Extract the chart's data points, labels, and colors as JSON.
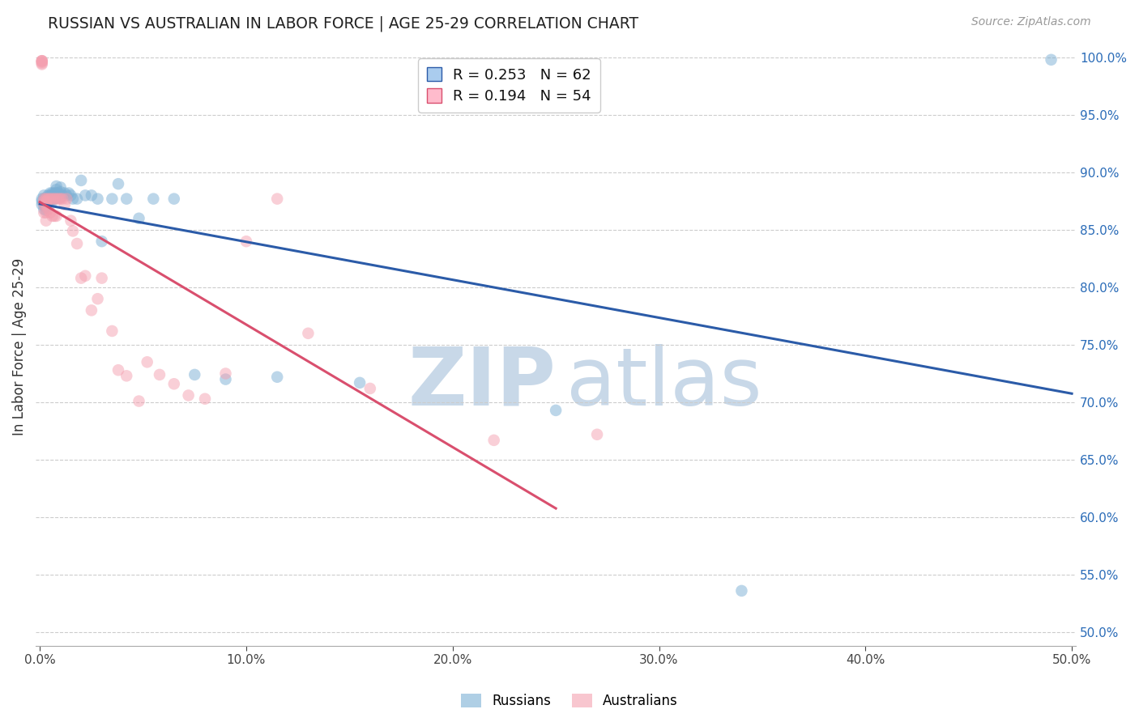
{
  "title": "RUSSIAN VS AUSTRALIAN IN LABOR FORCE | AGE 25-29 CORRELATION CHART",
  "source_text": "Source: ZipAtlas.com",
  "ylabel": "In Labor Force | Age 25-29",
  "xlim": [
    -0.002,
    0.502
  ],
  "ylim": [
    0.488,
    1.008
  ],
  "xtick_labels": [
    "0.0%",
    "10.0%",
    "20.0%",
    "30.0%",
    "40.0%",
    "50.0%"
  ],
  "xtick_vals": [
    0.0,
    0.1,
    0.2,
    0.3,
    0.4,
    0.5
  ],
  "ytick_labels": [
    "50.0%",
    "55.0%",
    "60.0%",
    "65.0%",
    "70.0%",
    "75.0%",
    "80.0%",
    "85.0%",
    "90.0%",
    "95.0%",
    "100.0%"
  ],
  "ytick_vals": [
    0.5,
    0.55,
    0.6,
    0.65,
    0.7,
    0.75,
    0.8,
    0.85,
    0.9,
    0.95,
    1.0
  ],
  "R_russian": 0.253,
  "N_russian": 62,
  "R_australian": 0.194,
  "N_australian": 54,
  "russian_color": "#7BAFD4",
  "australian_color": "#F4A0B0",
  "russian_line_color": "#2B5BA8",
  "australian_line_color": "#D94F6E",
  "watermark_zip": "ZIP",
  "watermark_atlas": "atlas",
  "watermark_color": "#C8D8E8",
  "russian_x": [
    0.001,
    0.001,
    0.001,
    0.002,
    0.002,
    0.002,
    0.002,
    0.002,
    0.003,
    0.003,
    0.003,
    0.003,
    0.003,
    0.003,
    0.004,
    0.004,
    0.004,
    0.005,
    0.005,
    0.005,
    0.005,
    0.006,
    0.006,
    0.006,
    0.006,
    0.007,
    0.007,
    0.007,
    0.008,
    0.008,
    0.008,
    0.008,
    0.009,
    0.009,
    0.01,
    0.01,
    0.01,
    0.011,
    0.012,
    0.013,
    0.014,
    0.015,
    0.016,
    0.018,
    0.02,
    0.022,
    0.025,
    0.028,
    0.03,
    0.035,
    0.038,
    0.042,
    0.048,
    0.055,
    0.065,
    0.075,
    0.09,
    0.115,
    0.155,
    0.25,
    0.34,
    0.49
  ],
  "russian_y": [
    0.877,
    0.875,
    0.872,
    0.88,
    0.877,
    0.875,
    0.872,
    0.868,
    0.877,
    0.878,
    0.875,
    0.872,
    0.87,
    0.867,
    0.88,
    0.877,
    0.875,
    0.882,
    0.88,
    0.877,
    0.875,
    0.882,
    0.88,
    0.877,
    0.875,
    0.882,
    0.88,
    0.877,
    0.888,
    0.885,
    0.882,
    0.878,
    0.882,
    0.878,
    0.887,
    0.883,
    0.878,
    0.88,
    0.882,
    0.88,
    0.882,
    0.88,
    0.877,
    0.877,
    0.893,
    0.88,
    0.88,
    0.877,
    0.84,
    0.877,
    0.89,
    0.877,
    0.86,
    0.877,
    0.877,
    0.724,
    0.72,
    0.722,
    0.717,
    0.693,
    0.536,
    0.998
  ],
  "australian_x": [
    0.001,
    0.001,
    0.001,
    0.001,
    0.001,
    0.001,
    0.002,
    0.002,
    0.002,
    0.002,
    0.003,
    0.003,
    0.003,
    0.003,
    0.003,
    0.004,
    0.004,
    0.005,
    0.005,
    0.006,
    0.006,
    0.007,
    0.007,
    0.008,
    0.008,
    0.009,
    0.01,
    0.011,
    0.012,
    0.013,
    0.015,
    0.016,
    0.018,
    0.02,
    0.022,
    0.025,
    0.028,
    0.03,
    0.035,
    0.038,
    0.042,
    0.048,
    0.052,
    0.058,
    0.065,
    0.072,
    0.08,
    0.09,
    0.1,
    0.115,
    0.13,
    0.16,
    0.22,
    0.27
  ],
  "australian_y": [
    0.997,
    0.997,
    0.997,
    0.996,
    0.995,
    0.994,
    0.877,
    0.875,
    0.872,
    0.865,
    0.877,
    0.875,
    0.872,
    0.865,
    0.858,
    0.877,
    0.868,
    0.877,
    0.865,
    0.877,
    0.862,
    0.877,
    0.862,
    0.877,
    0.862,
    0.877,
    0.877,
    0.877,
    0.872,
    0.877,
    0.858,
    0.849,
    0.838,
    0.808,
    0.81,
    0.78,
    0.79,
    0.808,
    0.762,
    0.728,
    0.723,
    0.701,
    0.735,
    0.724,
    0.716,
    0.706,
    0.703,
    0.725,
    0.84,
    0.877,
    0.76,
    0.712,
    0.667,
    0.672
  ]
}
